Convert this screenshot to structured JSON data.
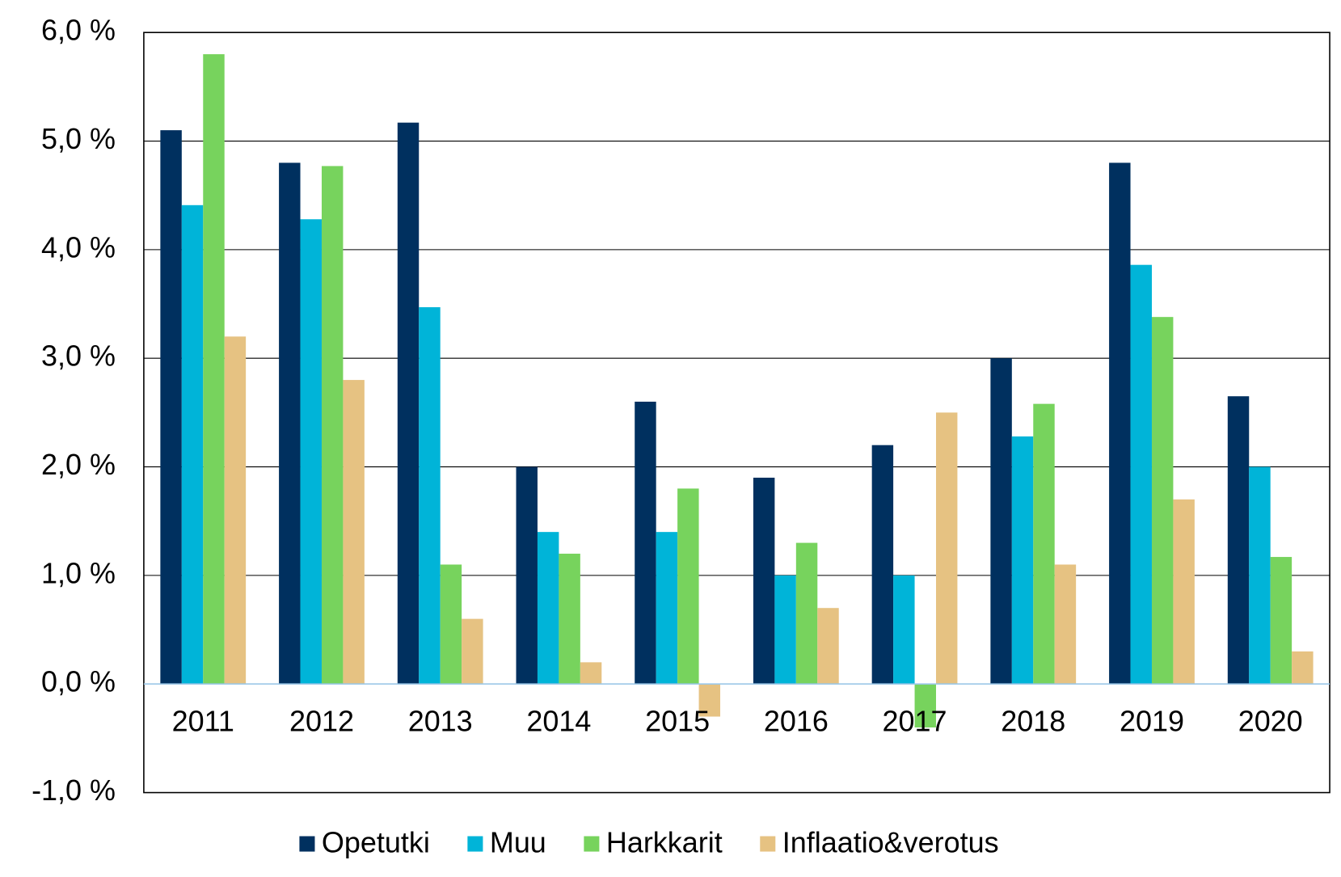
{
  "chart_data": {
    "type": "bar",
    "categories": [
      "2011",
      "2012",
      "2013",
      "2014",
      "2015",
      "2016",
      "2017",
      "2018",
      "2019",
      "2020"
    ],
    "series": [
      {
        "name": "Opetutki",
        "color": "#00305f",
        "values": [
          5.1,
          4.8,
          5.17,
          2.0,
          2.6,
          1.9,
          2.2,
          3.0,
          4.8,
          2.65
        ]
      },
      {
        "name": "Muu",
        "color": "#00b4d8",
        "values": [
          4.41,
          4.28,
          3.47,
          1.4,
          1.4,
          1.0,
          1.0,
          2.28,
          3.86,
          2.0
        ]
      },
      {
        "name": "Harkkarit",
        "color": "#77d35d",
        "values": [
          5.8,
          4.77,
          1.1,
          1.2,
          1.8,
          1.3,
          -0.4,
          2.58,
          3.38,
          1.17
        ]
      },
      {
        "name": "Inflaatio&verotus",
        "color": "#e6c282",
        "values": [
          3.2,
          2.8,
          0.6,
          0.2,
          -0.3,
          0.7,
          2.5,
          1.1,
          1.7,
          0.3
        ]
      }
    ],
    "ylim": [
      -1,
      6
    ],
    "yticks": [
      {
        "value": -1,
        "label": "-1,0 %"
      },
      {
        "value": 0,
        "label": "0,0 %"
      },
      {
        "value": 1,
        "label": "1,0 %"
      },
      {
        "value": 2,
        "label": "2,0 %"
      },
      {
        "value": 3,
        "label": "3,0 %"
      },
      {
        "value": 4,
        "label": "4,0 %"
      },
      {
        "value": 5,
        "label": "5,0 %"
      },
      {
        "value": 6,
        "label": "6,0 %"
      }
    ],
    "grid": true,
    "legend": "bottom"
  }
}
